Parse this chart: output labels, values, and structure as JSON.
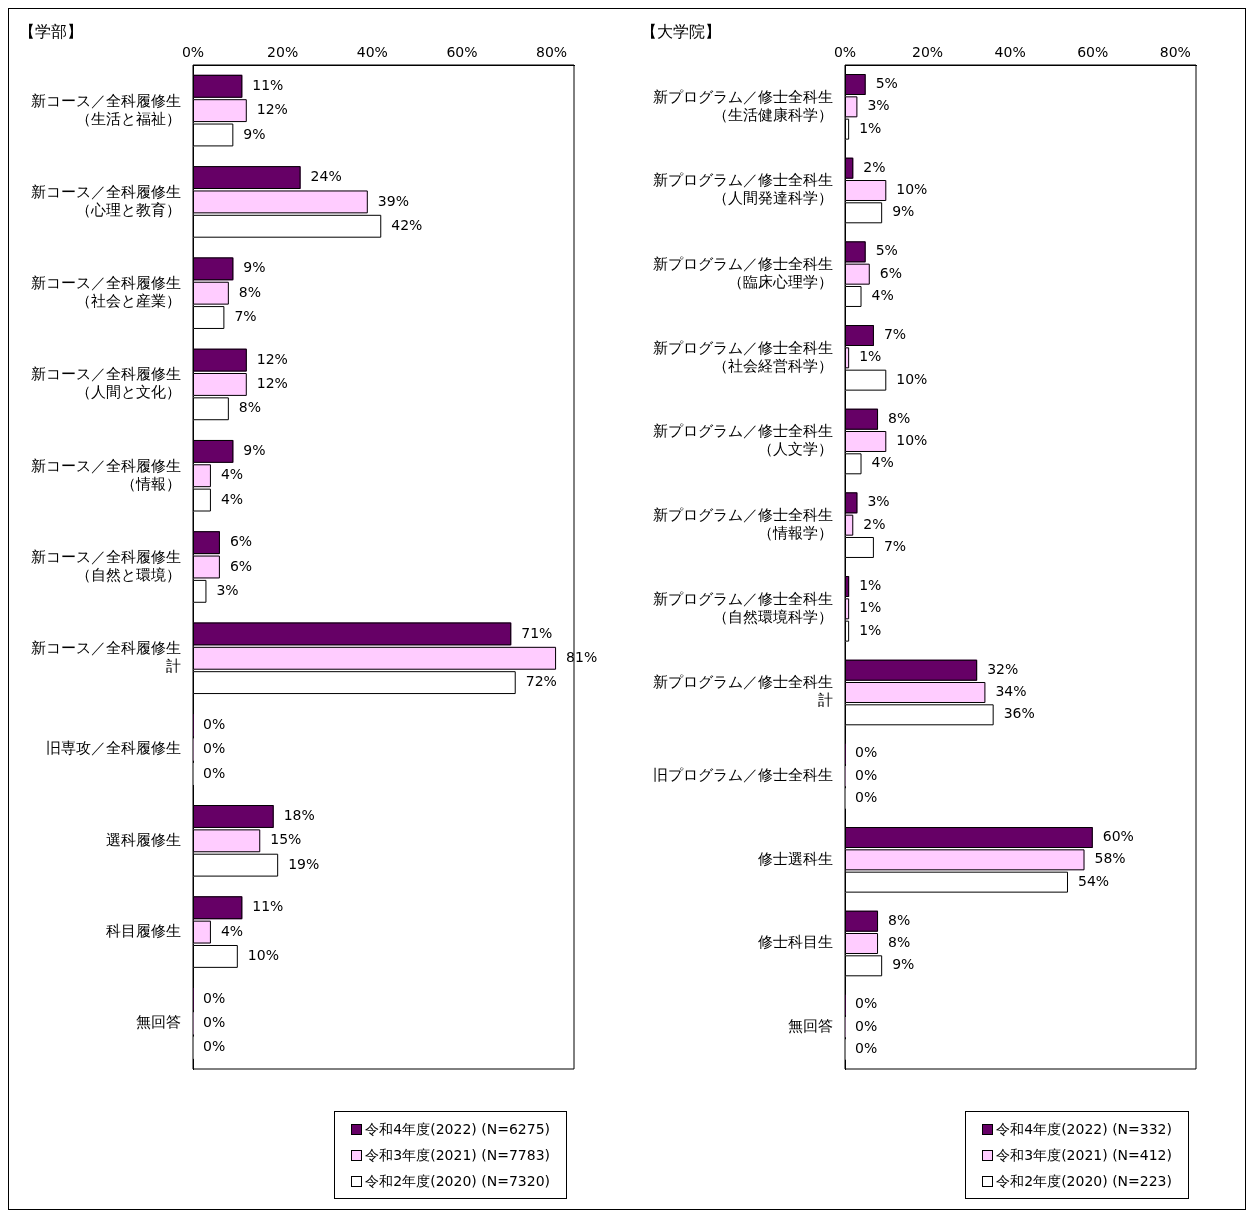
{
  "chart_data": [
    {
      "type": "bar",
      "orientation": "horizontal",
      "title": "【学部】",
      "categories": [
        "新コース／全科履修生（生活と福祉）",
        "新コース／全科履修生（心理と教育）",
        "新コース／全科履修生（社会と産業）",
        "新コース／全科履修生（人間と文化）",
        "新コース／全科履修生（情報）",
        "新コース／全科履修生（自然と環境）",
        "新コース／全科履修生計",
        "旧専攻／全科履修生",
        "選科履修生",
        "科目履修生",
        "無回答"
      ],
      "series": [
        {
          "name": "令和4年度(2022) (N=6275)",
          "color": "#660066",
          "values": [
            11,
            24,
            9,
            12,
            9,
            6,
            71,
            0,
            18,
            11,
            0
          ],
          "value_labels": [
            "11%",
            "24%",
            "9%",
            "12%",
            "9%",
            "6%",
            "71%",
            "0%",
            "18%",
            "11%",
            "0%"
          ]
        },
        {
          "name": "令和3年度(2021) (N=7783)",
          "color": "#ffccff",
          "values": [
            12,
            39,
            8,
            12,
            4,
            6,
            81,
            0,
            15,
            4,
            0
          ],
          "value_labels": [
            "12%",
            "39%",
            "8%",
            "12%",
            "4%",
            "6%",
            "81%",
            "0%",
            "15%",
            "4%",
            "0%"
          ]
        },
        {
          "name": "令和2年度(2020) (N=7320)",
          "color": "#ffffff",
          "values": [
            9,
            42,
            7,
            8,
            4,
            3,
            72,
            0,
            19,
            10,
            0
          ],
          "value_labels": [
            "9%",
            "42%",
            "7%",
            "8%",
            "4%",
            "3%",
            "72%",
            "0%",
            "19%",
            "10%",
            "0%"
          ]
        }
      ],
      "xlim": [
        0,
        85
      ],
      "xticks": [
        {
          "value": 0,
          "label": "0%"
        },
        {
          "value": 20,
          "label": "20%"
        },
        {
          "value": 40,
          "label": "40%"
        },
        {
          "value": 60,
          "label": "60%"
        },
        {
          "value": 80,
          "label": "80%"
        }
      ],
      "legend": "bottom"
    },
    {
      "type": "bar",
      "orientation": "horizontal",
      "title": "【大学院】",
      "categories": [
        "新プログラム／修士全科生（生活健康科学）",
        "新プログラム／修士全科生（人間発達科学）",
        "新プログラム／修士全科生（臨床心理学）",
        "新プログラム／修士全科生（社会経営科学）",
        "新プログラム／修士全科生（人文学）",
        "新プログラム／修士全科生（情報学）",
        "新プログラム／修士全科生（自然環境科学）",
        "新プログラム／修士全科生計",
        "旧プログラム／修士全科生",
        "修士選科生",
        "修士科目生",
        "無回答"
      ],
      "series": [
        {
          "name": "令和4年度(2022) (N=332)",
          "color": "#660066",
          "values": [
            5,
            2,
            5,
            7,
            8,
            3,
            1,
            32,
            0,
            60,
            8,
            0
          ],
          "value_labels": [
            "5%",
            "2%",
            "5%",
            "7%",
            "8%",
            "3%",
            "1%",
            "32%",
            "0%",
            "60%",
            "8%",
            "0%"
          ]
        },
        {
          "name": "令和3年度(2021) (N=412)",
          "color": "#ffccff",
          "values": [
            3,
            10,
            6,
            1,
            10,
            2,
            1,
            34,
            0,
            58,
            8,
            0
          ],
          "value_labels": [
            "3%",
            "10%",
            "6%",
            "1%",
            "10%",
            "2%",
            "1%",
            "34%",
            "0%",
            "58%",
            "8%",
            "0%"
          ]
        },
        {
          "name": "令和2年度(2020) (N=223)",
          "color": "#ffffff",
          "values": [
            1,
            9,
            4,
            10,
            4,
            7,
            1,
            36,
            0,
            54,
            9,
            0
          ],
          "value_labels": [
            "1%",
            "9%",
            "4%",
            "10%",
            "4%",
            "7%",
            "1%",
            "36%",
            "0%",
            "54%",
            "9%",
            "0%"
          ]
        }
      ],
      "xlim": [
        0,
        85
      ],
      "xticks": [
        {
          "value": 0,
          "label": "0%"
        },
        {
          "value": 20,
          "label": "20%"
        },
        {
          "value": 40,
          "label": "40%"
        },
        {
          "value": 60,
          "label": "60%"
        },
        {
          "value": 80,
          "label": "80%"
        }
      ],
      "legend": "bottom"
    }
  ]
}
